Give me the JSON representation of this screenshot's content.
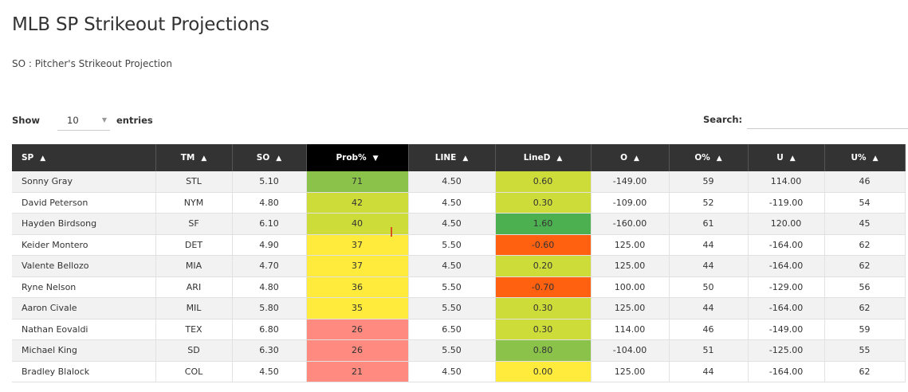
{
  "page": {
    "title": "MLB SP Strikeout Projections",
    "subtitle": "SO : Pitcher's Strikeout Projection"
  },
  "controls": {
    "show_label": "Show",
    "page_length": "10",
    "entries_label": "entries",
    "search_label": "Search:",
    "search_value": ""
  },
  "table": {
    "columns": [
      "SP",
      "TM",
      "SO",
      "Prob%",
      "LINE",
      "LineD",
      "O",
      "O%",
      "U",
      "U%"
    ],
    "sorted_column": "Prob%",
    "sort_direction": "descending",
    "rows": [
      {
        "sp": "Sonny Gray",
        "tm": "STL",
        "so": "5.10",
        "prob": "71",
        "line": "4.50",
        "lined": "0.60",
        "o": "-149.00",
        "opct": "59",
        "u": "114.00",
        "upct": "46",
        "prob_color": "#8bc34a",
        "lined_color": "#cddc39"
      },
      {
        "sp": "David Peterson",
        "tm": "NYM",
        "so": "4.80",
        "prob": "42",
        "line": "4.50",
        "lined": "0.30",
        "o": "-109.00",
        "opct": "52",
        "u": "-119.00",
        "upct": "54",
        "prob_color": "#cddc39",
        "lined_color": "#cddc39"
      },
      {
        "sp": "Hayden Birdsong",
        "tm": "SF",
        "so": "6.10",
        "prob": "40",
        "line": "4.50",
        "lined": "1.60",
        "o": "-160.00",
        "opct": "61",
        "u": "120.00",
        "upct": "45",
        "prob_color": "#cddc39",
        "lined_color": "#4caf50"
      },
      {
        "sp": "Keider Montero",
        "tm": "DET",
        "so": "4.90",
        "prob": "37",
        "line": "5.50",
        "lined": "-0.60",
        "o": "125.00",
        "opct": "44",
        "u": "-164.00",
        "upct": "62",
        "prob_color": "#ffeb3b",
        "lined_color": "#ff6110"
      },
      {
        "sp": "Valente Bellozo",
        "tm": "MIA",
        "so": "4.70",
        "prob": "37",
        "line": "4.50",
        "lined": "0.20",
        "o": "125.00",
        "opct": "44",
        "u": "-164.00",
        "upct": "62",
        "prob_color": "#ffeb3b",
        "lined_color": "#cddc39"
      },
      {
        "sp": "Ryne Nelson",
        "tm": "ARI",
        "so": "4.80",
        "prob": "36",
        "line": "5.50",
        "lined": "-0.70",
        "o": "100.00",
        "opct": "50",
        "u": "-129.00",
        "upct": "56",
        "prob_color": "#ffeb3b",
        "lined_color": "#ff6110"
      },
      {
        "sp": "Aaron Civale",
        "tm": "MIL",
        "so": "5.80",
        "prob": "35",
        "line": "5.50",
        "lined": "0.30",
        "o": "125.00",
        "opct": "44",
        "u": "-164.00",
        "upct": "62",
        "prob_color": "#ffeb3b",
        "lined_color": "#cddc39"
      },
      {
        "sp": "Nathan Eovaldi",
        "tm": "TEX",
        "so": "6.80",
        "prob": "26",
        "line": "6.50",
        "lined": "0.30",
        "o": "114.00",
        "opct": "46",
        "u": "-149.00",
        "upct": "59",
        "prob_color": "#ff8a80",
        "lined_color": "#cddc39"
      },
      {
        "sp": "Michael King",
        "tm": "SD",
        "so": "6.30",
        "prob": "26",
        "line": "5.50",
        "lined": "0.80",
        "o": "-104.00",
        "opct": "51",
        "u": "-125.00",
        "upct": "55",
        "prob_color": "#ff8a80",
        "lined_color": "#8bc34a"
      },
      {
        "sp": "Bradley Blalock",
        "tm": "COL",
        "so": "4.50",
        "prob": "21",
        "line": "4.50",
        "lined": "0.00",
        "o": "125.00",
        "opct": "44",
        "u": "-164.00",
        "upct": "62",
        "prob_color": "#ff8a80",
        "lined_color": "#ffeb3b"
      }
    ]
  }
}
